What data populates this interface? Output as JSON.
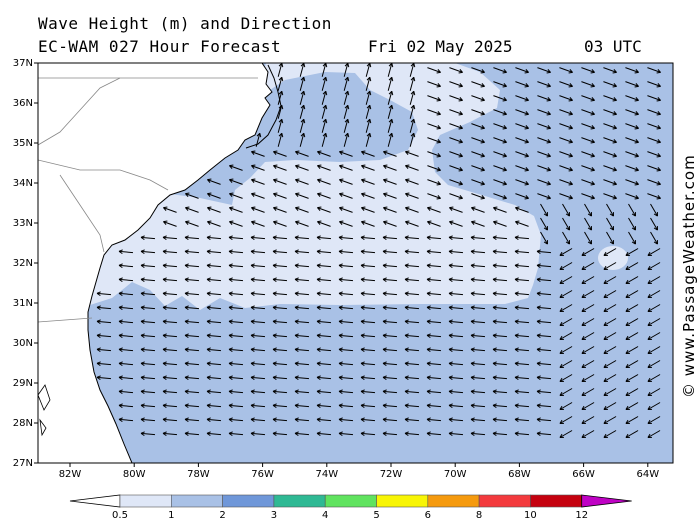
{
  "title": {
    "line1": "Wave Height (m) and Direction",
    "line2": "EC-WAM 027 Hour Forecast",
    "date": "Fri 02 May 2025",
    "time": "03 UTC"
  },
  "map": {
    "lat_labels": [
      "37N",
      "36N",
      "35N",
      "34N",
      "33N",
      "32N",
      "31N",
      "30N",
      "29N",
      "28N",
      "27N"
    ],
    "lon_labels": [
      "82W",
      "80W",
      "78W",
      "76W",
      "74W",
      "72W",
      "70W",
      "68W",
      "66W",
      "64W"
    ],
    "lat_range": [
      27,
      37
    ],
    "lon_range": [
      -83,
      -63
    ]
  },
  "legend": {
    "ticks": [
      "0.5",
      "1",
      "2",
      "3",
      "4",
      "5",
      "6",
      "8",
      "10",
      "12"
    ],
    "colors": [
      "#dfe7f7",
      "#a9c1e6",
      "#6f97d9",
      "#2fb994",
      "#60e35f",
      "#f8f505",
      "#f59a0e",
      "#f33a3d",
      "#c5010f",
      "#bf02c4"
    ]
  },
  "colors": {
    "land": "#ffffff",
    "sea_low": "#dfe7f7",
    "sea_mid": "#a9c1e6",
    "coast": "#000000"
  },
  "brand": "© www.PassageWeather.com"
}
